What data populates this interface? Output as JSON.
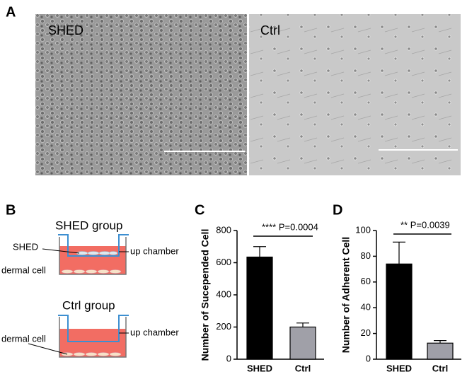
{
  "panel_labels": [
    "A",
    "B",
    "C",
    "D"
  ],
  "micrographs": [
    {
      "label": "SHED"
    },
    {
      "label": "Ctrl"
    }
  ],
  "diagram": {
    "shed_group": {
      "title": "SHED group",
      "cell_label": "SHED",
      "chamber_label": "up chamber",
      "dermal_label": "dermal cell"
    },
    "ctrl_group": {
      "title": "Ctrl group",
      "chamber_label": "up chamber",
      "dermal_label": "dermal cell"
    }
  },
  "chart_data": [
    {
      "type": "bar",
      "ylabel": "Number of Sucepended Cell",
      "categories": [
        "SHED",
        "Ctrl"
      ],
      "values": [
        635,
        200
      ],
      "errors": [
        65,
        25
      ],
      "colors": [
        "#000000",
        "#a0a0a8"
      ],
      "ylim": [
        0,
        800
      ],
      "yticks": [
        0,
        200,
        400,
        600,
        800
      ],
      "annotation": "**** P=0.0004"
    },
    {
      "type": "bar",
      "ylabel": "Number of Adherent Cell",
      "categories": [
        "SHED",
        "Ctrl"
      ],
      "values": [
        74,
        12.5
      ],
      "errors": [
        17,
        2
      ],
      "colors": [
        "#000000",
        "#a0a0a8"
      ],
      "ylim": [
        0,
        100
      ],
      "yticks": [
        0,
        20,
        40,
        60,
        80,
        100
      ],
      "annotation": "** P=0.0039"
    }
  ]
}
